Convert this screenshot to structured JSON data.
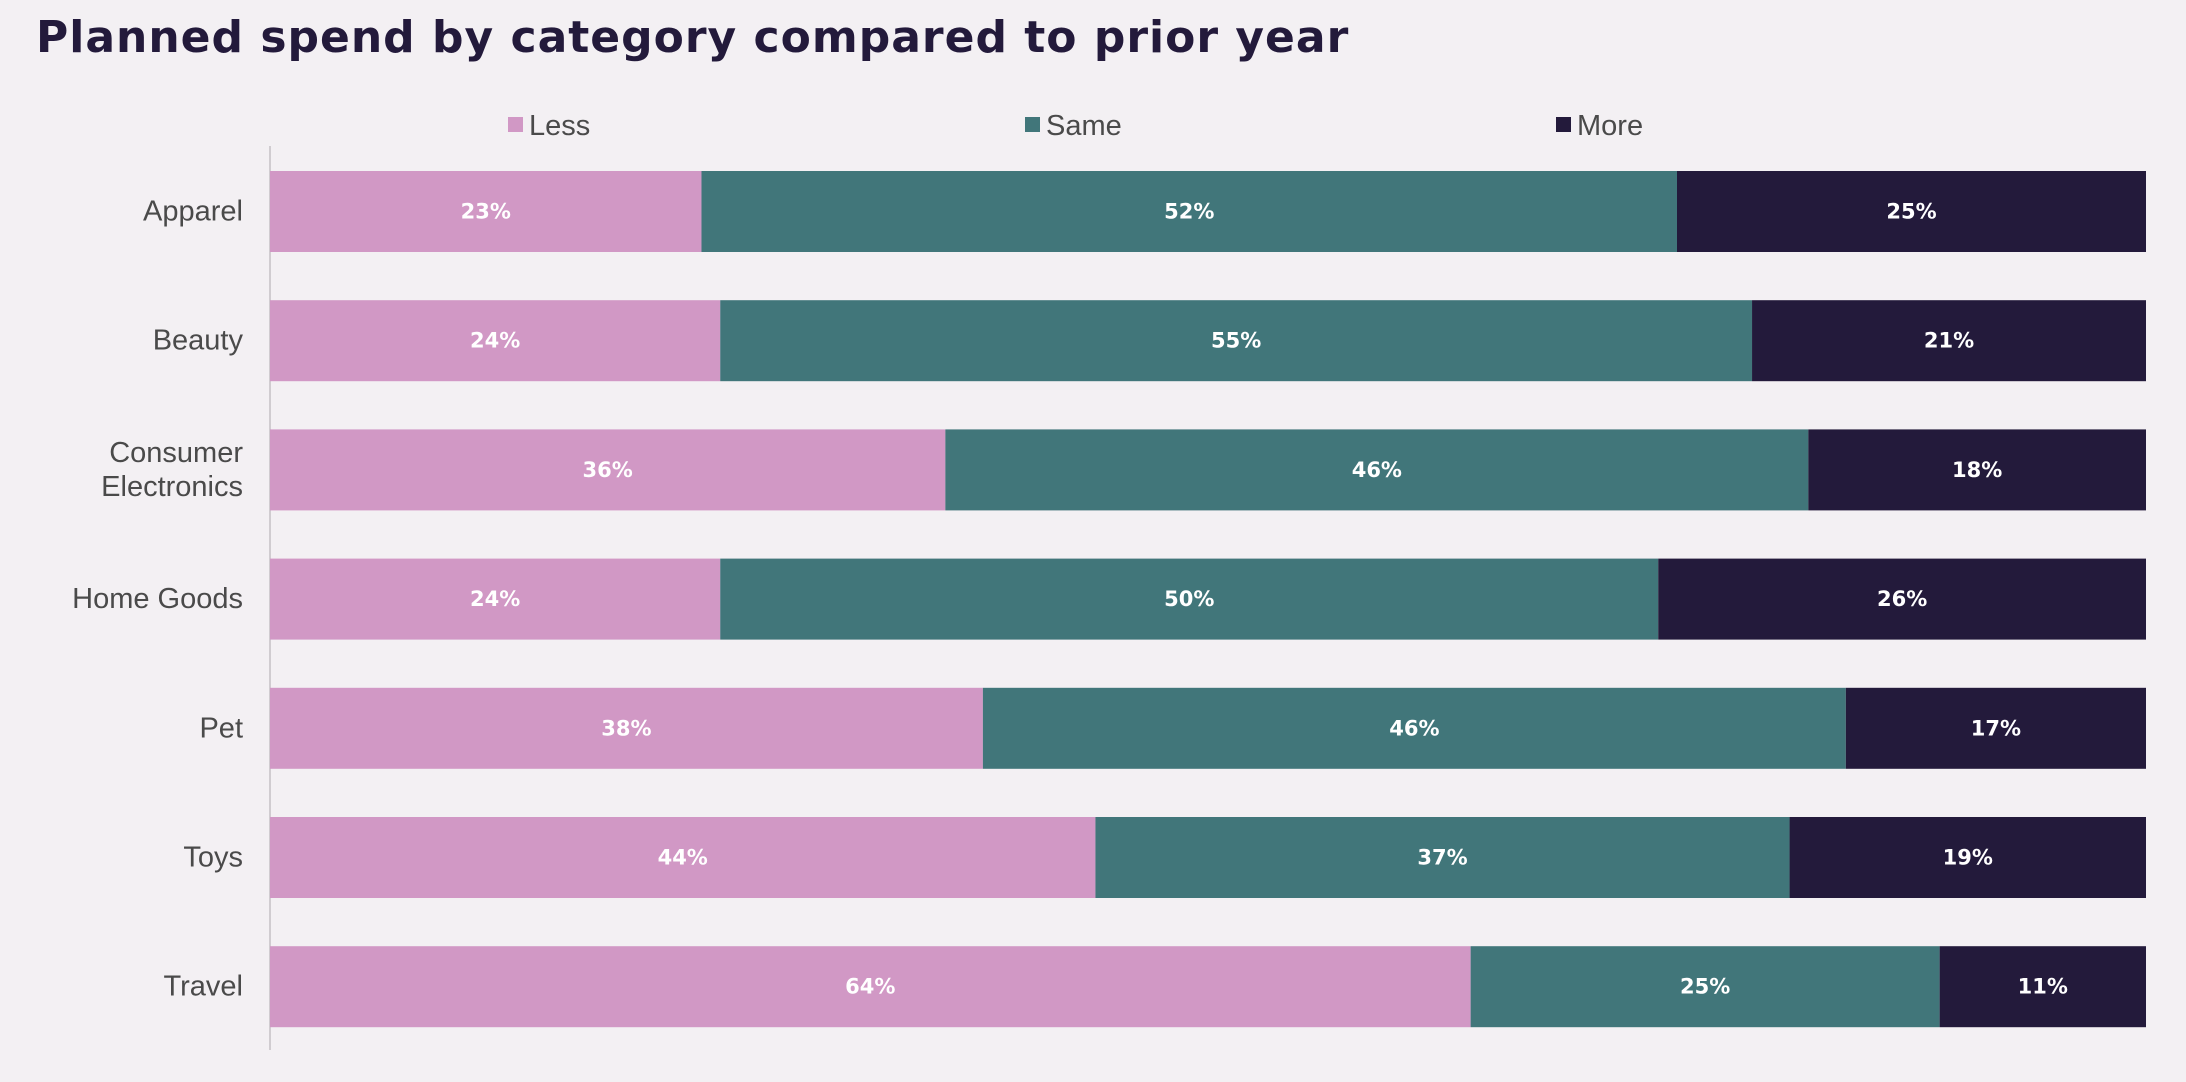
{
  "chart_data": {
    "type": "bar",
    "orientation": "horizontal",
    "stacked": true,
    "title": "Planned spend by category compared to prior year",
    "categories": [
      "Apparel",
      "Beauty",
      "Consumer Electronics",
      "Home Goods",
      "Pet",
      "Toys",
      "Travel"
    ],
    "category_lines": [
      [
        "Apparel"
      ],
      [
        "Beauty"
      ],
      [
        "Consumer",
        "Electronics"
      ],
      [
        "Home Goods"
      ],
      [
        "Pet"
      ],
      [
        "Toys"
      ],
      [
        "Travel"
      ]
    ],
    "series": [
      {
        "name": "Less",
        "color": "#d198c5",
        "values": [
          23,
          24,
          36,
          24,
          38,
          44,
          64
        ]
      },
      {
        "name": "Same",
        "color": "#41767a",
        "values": [
          52,
          55,
          46,
          50,
          46,
          37,
          25
        ]
      },
      {
        "name": "More",
        "color": "#231a3b",
        "values": [
          25,
          21,
          18,
          26,
          17,
          19,
          11
        ]
      }
    ],
    "value_suffix": "%",
    "xlim": [
      0,
      100
    ],
    "legend_position": "top",
    "grid": false,
    "xlabel": "",
    "ylabel": ""
  }
}
